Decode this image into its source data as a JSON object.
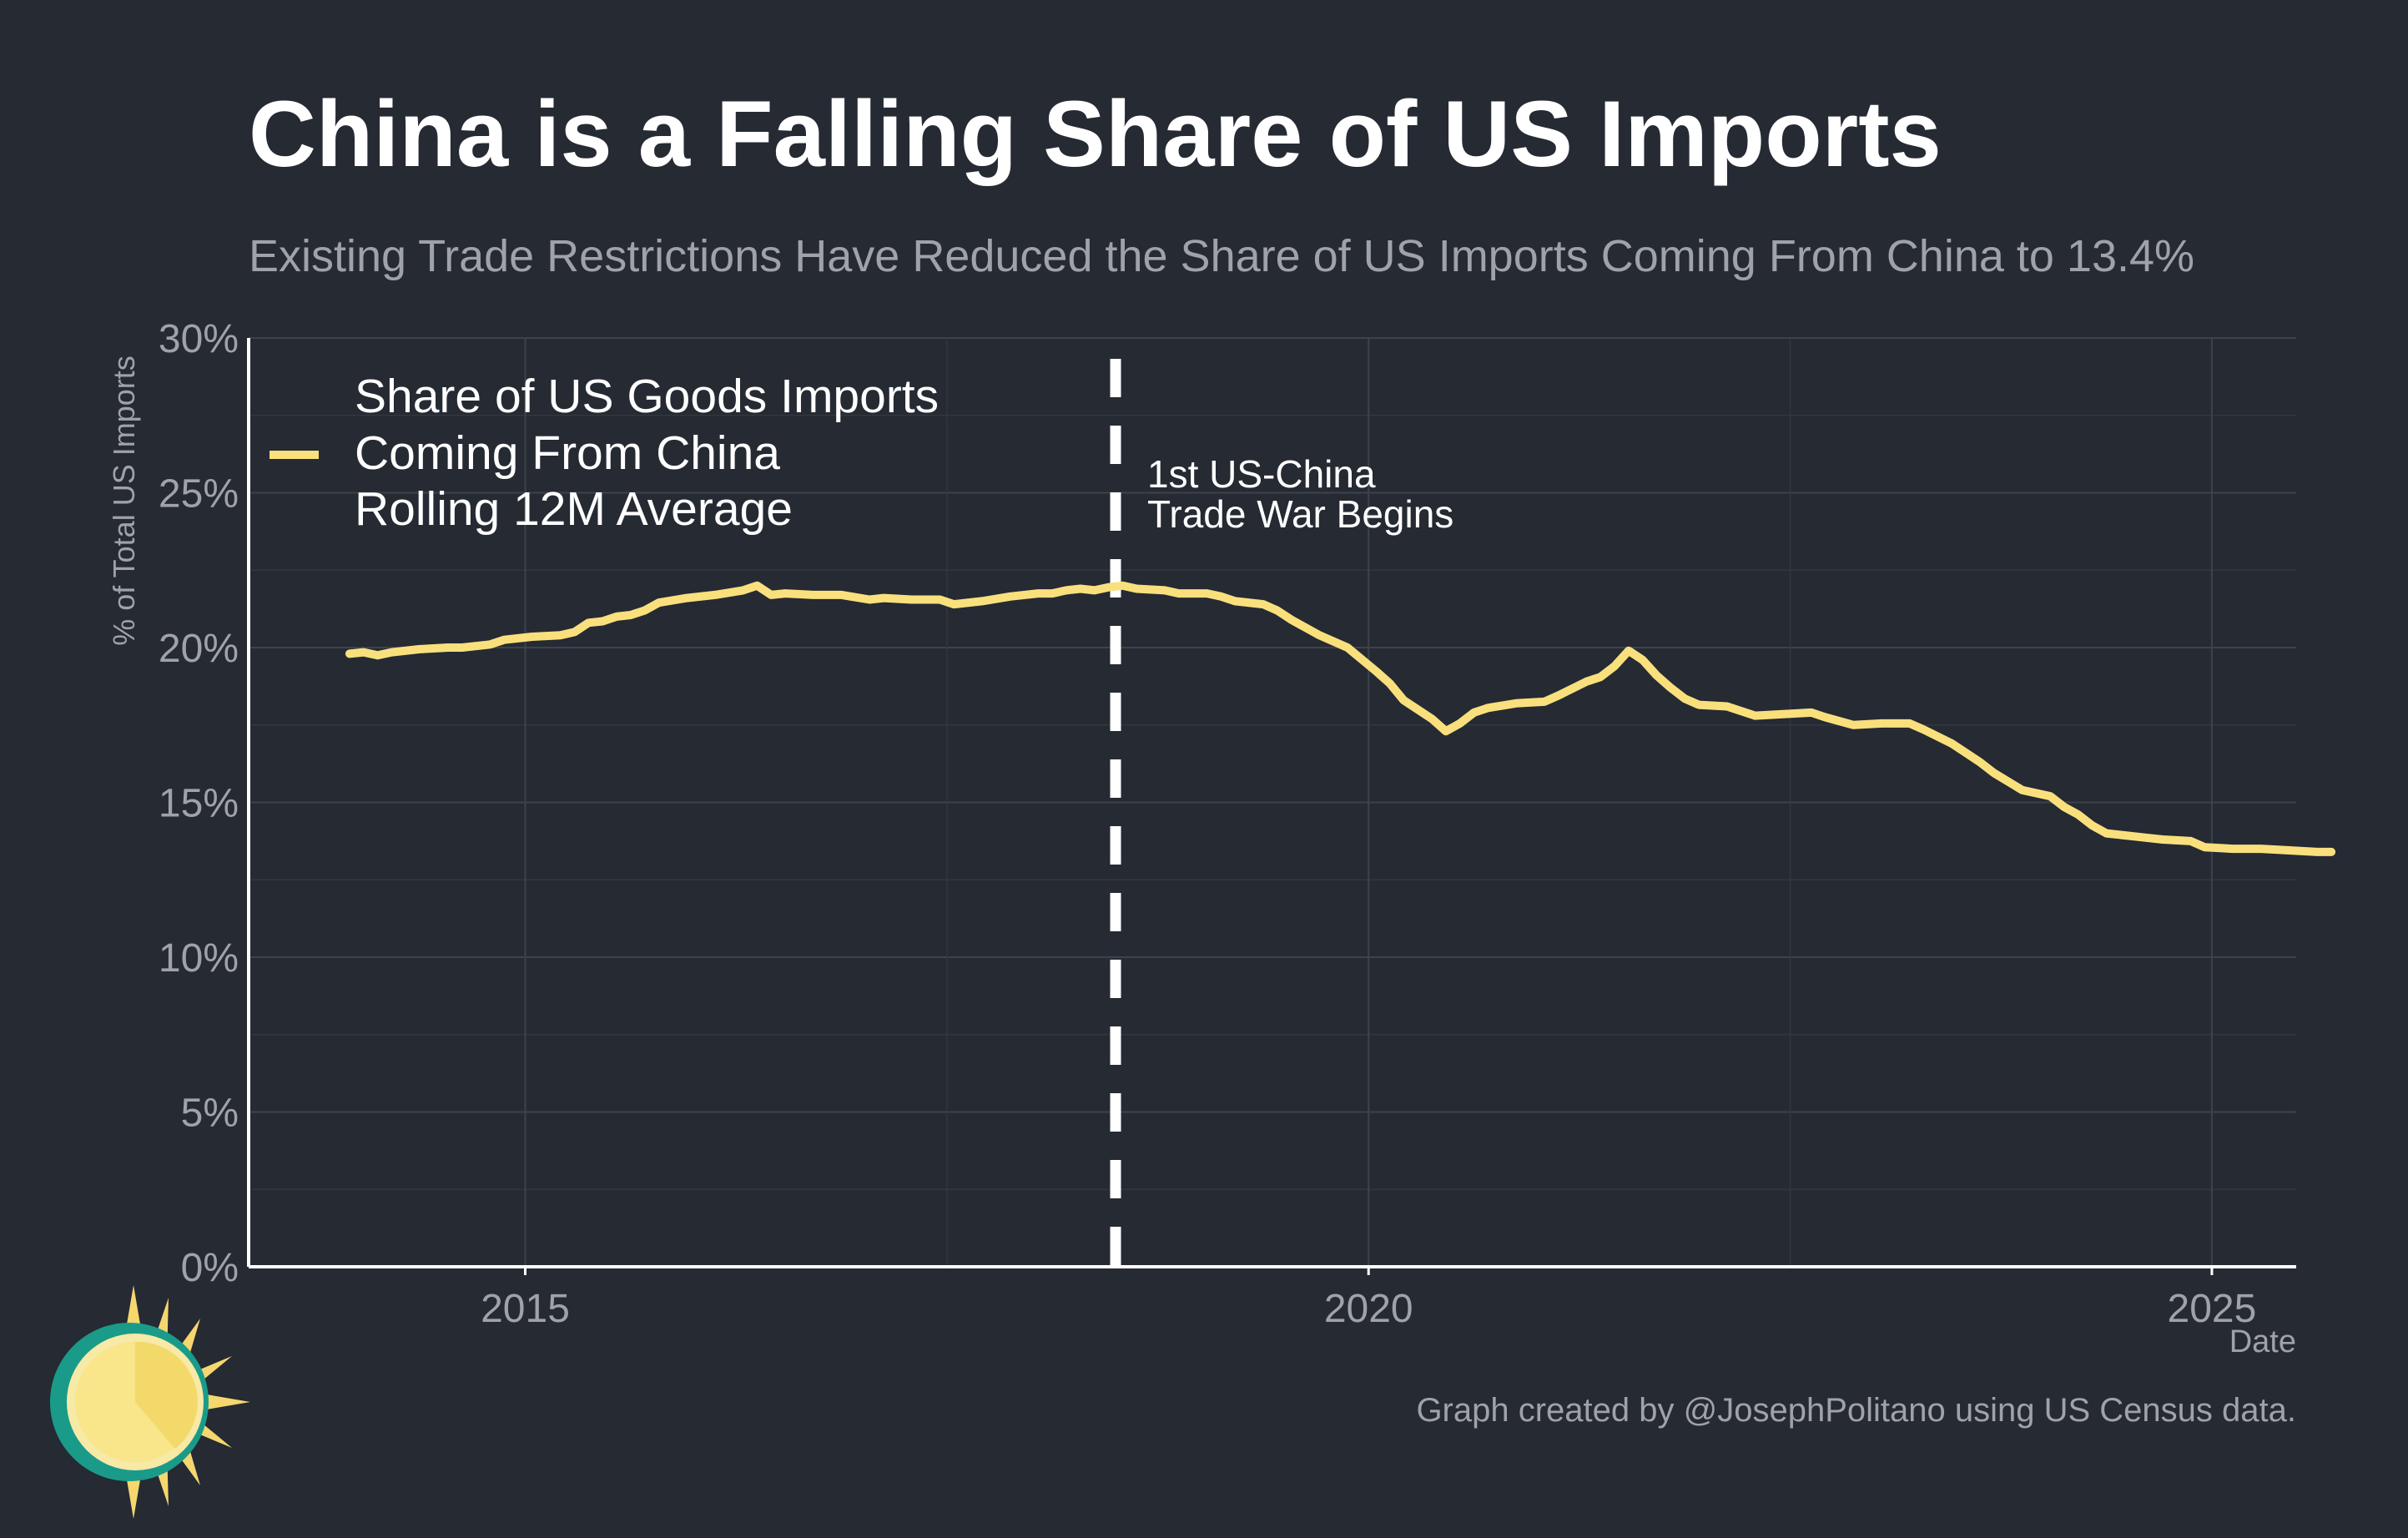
{
  "title": "China is a Falling Share of US Imports",
  "subtitle": "Existing Trade Restrictions Have Reduced the Share of US Imports Coming From China to 13.4%",
  "credit": "Graph created by @JosephPolitano using US Census data.",
  "colors": {
    "background": "#252a33",
    "line": "#f9e07d",
    "marker": "#ffffff",
    "axis_text": "#9fa2a8"
  },
  "chart_data": {
    "type": "line",
    "title": "China is a Falling Share of US Imports",
    "subtitle": "Existing Trade Restrictions Have Reduced the Share of US Imports Coming From China to 13.4%",
    "xlabel": "Date",
    "ylabel": "% of Total US Imports",
    "ylim": [
      0,
      30
    ],
    "xlim": [
      2013.36,
      2025.5
    ],
    "yticks": [
      0,
      5,
      10,
      15,
      20,
      25,
      30
    ],
    "ytick_labels": [
      "0%",
      "5%",
      "10%",
      "15%",
      "20%",
      "25%",
      "30%"
    ],
    "xticks": [
      2015,
      2020,
      2025
    ],
    "xtick_labels": [
      "2015",
      "2020",
      "2025"
    ],
    "grid": true,
    "legend_position": "top-left",
    "annotation": {
      "x": 2018.5,
      "label_line1": "1st US-China",
      "label_line2": "Trade War Begins"
    },
    "series": [
      {
        "name": "Share of US Goods Imports Coming From China Rolling 12M Average",
        "legend_lines": [
          "Share of US Goods Imports",
          "Coming From China",
          "Rolling 12M Average"
        ],
        "points": [
          [
            "2013-12",
            19.8
          ],
          [
            "2014-01",
            19.85
          ],
          [
            "2014-02",
            19.75
          ],
          [
            "2014-03",
            19.85
          ],
          [
            "2014-05",
            19.95
          ],
          [
            "2014-07",
            20.0
          ],
          [
            "2014-08",
            20.0
          ],
          [
            "2014-10",
            20.1
          ],
          [
            "2014-11",
            20.25
          ],
          [
            "2015-01",
            20.35
          ],
          [
            "2015-03",
            20.4
          ],
          [
            "2015-04",
            20.5
          ],
          [
            "2015-05",
            20.8
          ],
          [
            "2015-06",
            20.85
          ],
          [
            "2015-07",
            21.0
          ],
          [
            "2015-08",
            21.05
          ],
          [
            "2015-09",
            21.2
          ],
          [
            "2015-10",
            21.45
          ],
          [
            "2015-12",
            21.6
          ],
          [
            "2016-02",
            21.7
          ],
          [
            "2016-04",
            21.85
          ],
          [
            "2016-05",
            22.0
          ],
          [
            "2016-06",
            21.7
          ],
          [
            "2016-07",
            21.75
          ],
          [
            "2016-09",
            21.7
          ],
          [
            "2016-11",
            21.7
          ],
          [
            "2017-01",
            21.55
          ],
          [
            "2017-02",
            21.6
          ],
          [
            "2017-04",
            21.55
          ],
          [
            "2017-06",
            21.55
          ],
          [
            "2017-07",
            21.4
          ],
          [
            "2017-09",
            21.5
          ],
          [
            "2017-11",
            21.65
          ],
          [
            "2018-01",
            21.75
          ],
          [
            "2018-02",
            21.75
          ],
          [
            "2018-03",
            21.85
          ],
          [
            "2018-04",
            21.9
          ],
          [
            "2018-05",
            21.85
          ],
          [
            "2018-06",
            21.95
          ],
          [
            "2018-07",
            22.0
          ],
          [
            "2018-08",
            21.9
          ],
          [
            "2018-10",
            21.85
          ],
          [
            "2018-11",
            21.75
          ],
          [
            "2019-01",
            21.75
          ],
          [
            "2019-02",
            21.65
          ],
          [
            "2019-03",
            21.5
          ],
          [
            "2019-05",
            21.4
          ],
          [
            "2019-06",
            21.2
          ],
          [
            "2019-07",
            20.9
          ],
          [
            "2019-08",
            20.65
          ],
          [
            "2019-09",
            20.4
          ],
          [
            "2019-11",
            20.0
          ],
          [
            "2020-01",
            19.25
          ],
          [
            "2020-02",
            18.85
          ],
          [
            "2020-03",
            18.3
          ],
          [
            "2020-05",
            17.7
          ],
          [
            "2020-06",
            17.3
          ],
          [
            "2020-07",
            17.55
          ],
          [
            "2020-08",
            17.9
          ],
          [
            "2020-09",
            18.05
          ],
          [
            "2020-11",
            18.2
          ],
          [
            "2021-01",
            18.25
          ],
          [
            "2021-02",
            18.45
          ],
          [
            "2021-04",
            18.9
          ],
          [
            "2021-05",
            19.05
          ],
          [
            "2021-06",
            19.4
          ],
          [
            "2021-07",
            19.9
          ],
          [
            "2021-08",
            19.6
          ],
          [
            "2021-09",
            19.1
          ],
          [
            "2021-10",
            18.7
          ],
          [
            "2021-11",
            18.35
          ],
          [
            "2021-12",
            18.15
          ],
          [
            "2022-02",
            18.1
          ],
          [
            "2022-04",
            17.8
          ],
          [
            "2022-06",
            17.85
          ],
          [
            "2022-08",
            17.9
          ],
          [
            "2022-09",
            17.75
          ],
          [
            "2022-11",
            17.5
          ],
          [
            "2023-01",
            17.55
          ],
          [
            "2023-03",
            17.55
          ],
          [
            "2023-04",
            17.35
          ],
          [
            "2023-06",
            16.9
          ],
          [
            "2023-08",
            16.3
          ],
          [
            "2023-09",
            15.95
          ],
          [
            "2023-11",
            15.4
          ],
          [
            "2024-01",
            15.2
          ],
          [
            "2024-02",
            14.85
          ],
          [
            "2024-03",
            14.6
          ],
          [
            "2024-04",
            14.25
          ],
          [
            "2024-05",
            14.0
          ],
          [
            "2024-07",
            13.9
          ],
          [
            "2024-08",
            13.85
          ],
          [
            "2024-09",
            13.8
          ],
          [
            "2024-11",
            13.75
          ],
          [
            "2024-12",
            13.55
          ],
          [
            "2025-02",
            13.5
          ],
          [
            "2025-04",
            13.5
          ],
          [
            "2025-06",
            13.45
          ],
          [
            "2025-08",
            13.4
          ],
          [
            "2025-09",
            13.4
          ]
        ]
      }
    ]
  }
}
